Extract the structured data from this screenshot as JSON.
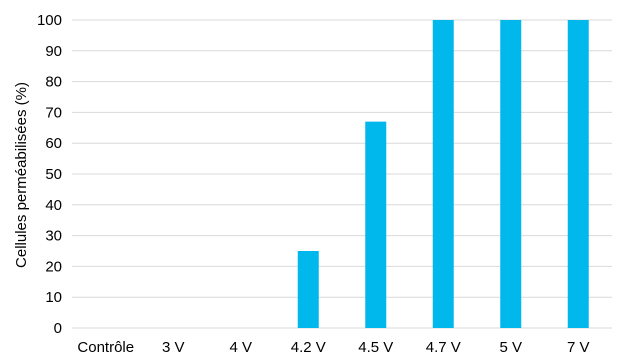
{
  "chart_data": {
    "type": "bar",
    "title": "",
    "xlabel": "",
    "ylabel": "Cellules perméabilisées (%)",
    "categories": [
      "Contrôle",
      "3 V",
      "4 V",
      "4.2 V",
      "4.5 V",
      "4.7 V",
      "5 V",
      "7 V"
    ],
    "values": [
      0,
      0,
      0,
      25,
      67,
      100,
      100,
      100
    ],
    "ylim": [
      0,
      100
    ],
    "yticks": [
      0,
      10,
      20,
      30,
      40,
      50,
      60,
      70,
      80,
      90,
      100
    ],
    "grid": true,
    "legend": "none",
    "bar_color": "#00b8ec",
    "grid_color": "#d9d9d9"
  }
}
